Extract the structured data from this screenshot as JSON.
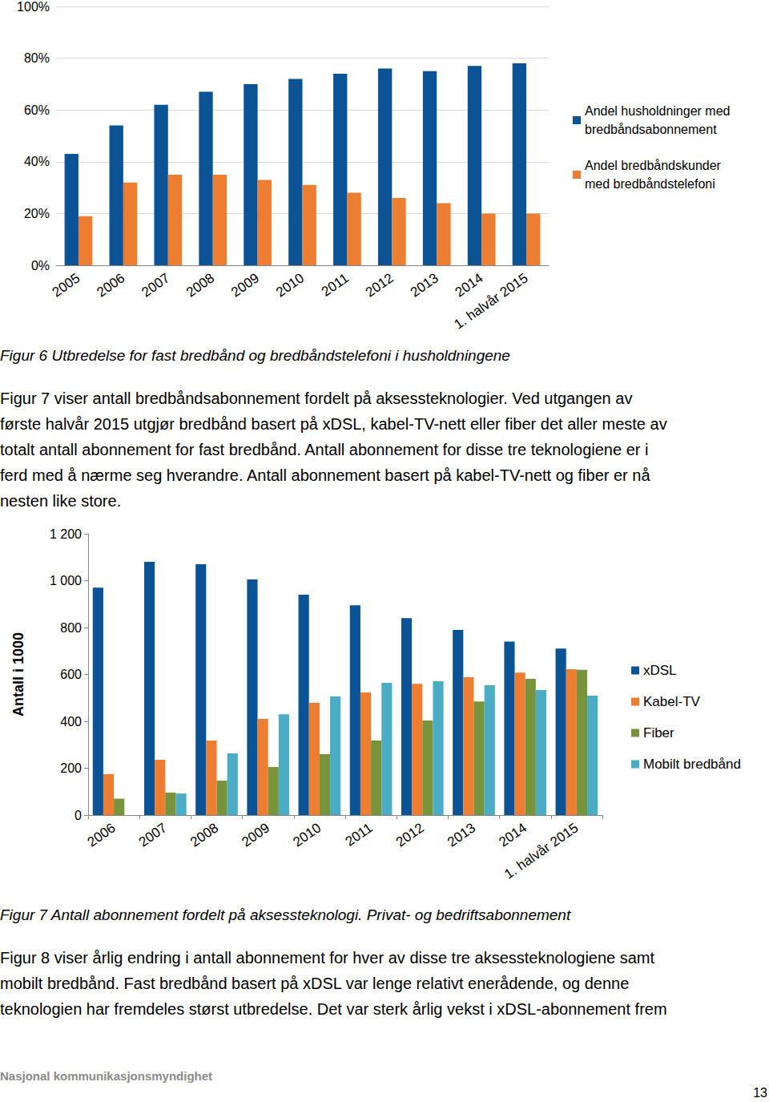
{
  "chart_data": [
    {
      "type": "bar",
      "categories": [
        "2005",
        "2006",
        "2007",
        "2008",
        "2009",
        "2010",
        "2011",
        "2012",
        "2013",
        "2014",
        "1. halvår 2015"
      ],
      "series": [
        {
          "name": "Andel husholdninger med bredbåndsabonnement",
          "color": "#0b5394",
          "values": [
            43,
            54,
            62,
            67,
            70,
            72,
            74,
            76,
            75,
            77,
            78
          ]
        },
        {
          "name": "Andel bredbåndskunder med bredbåndstelefoni",
          "color": "#ed7d31",
          "values": [
            19,
            32,
            35,
            35,
            33,
            31,
            28,
            26,
            24,
            20,
            20
          ]
        }
      ],
      "ylim": [
        0,
        100
      ],
      "yticks": [
        {
          "value": 0,
          "label": "0%"
        },
        {
          "value": 20,
          "label": "20%"
        },
        {
          "value": 40,
          "label": "40%"
        },
        {
          "value": 60,
          "label": "60%"
        },
        {
          "value": 80,
          "label": "80%"
        },
        {
          "value": 100,
          "label": "100%"
        }
      ],
      "grid": true,
      "legend": "right"
    },
    {
      "type": "bar",
      "y_label": "Antall i 1000",
      "categories": [
        "2006",
        "2007",
        "2008",
        "2009",
        "2010",
        "2011",
        "2012",
        "2013",
        "2014",
        "1. halvår 2015"
      ],
      "series": [
        {
          "name": "xDSL",
          "color": "#0b5394",
          "values": [
            970,
            1080,
            1070,
            1005,
            940,
            895,
            840,
            790,
            740,
            710
          ]
        },
        {
          "name": "Kabel-TV",
          "color": "#ed7d31",
          "values": [
            175,
            236,
            318,
            410,
            479,
            523,
            560,
            588,
            608,
            622
          ]
        },
        {
          "name": "Fiber",
          "color": "#77933c",
          "values": [
            70,
            96,
            147,
            205,
            260,
            318,
            403,
            485,
            581,
            620
          ]
        },
        {
          "name": "Mobilt bredbånd",
          "color": "#4bacc6",
          "values": [
            null,
            92,
            263,
            430,
            506,
            564,
            571,
            554,
            533,
            509
          ]
        }
      ],
      "ylim": [
        0,
        1200
      ],
      "yticks": [
        0,
        200,
        400,
        600,
        800,
        {
          "value": 1000,
          "label": "1 000"
        },
        {
          "value": 1200,
          "label": "1 200"
        }
      ],
      "grid": false,
      "legend": "right"
    }
  ],
  "document": {
    "caption_1": "Figur 6 Utbredelse for fast bredbånd og bredbåndstelefoni i husholdningene",
    "paragraph_1": [
      "Figur 7 viser antall bredbåndsabonnement fordelt på aksessteknologier. Ved utgangen av",
      "første halvår 2015 utgjør bredbånd basert på xDSL, kabel-TV-nett eller fiber det aller meste av",
      "totalt antall abonnement for fast bredbånd. Antall abonnement for disse tre teknologiene er i",
      "ferd med å nærme seg hverandre. Antall abonnement basert på kabel-TV-nett og fiber er nå",
      "nesten like store."
    ],
    "caption_2": "Figur 7 Antall abonnement fordelt på aksessteknologi. Privat- og bedriftsabonnement",
    "paragraph_2": [
      "Figur 8 viser årlig endring i antall abonnement for hver av disse tre aksessteknologiene samt",
      "mobilt bredbånd. Fast bredbånd basert på xDSL var lenge relativt enerådende, og denne",
      "teknologien har fremdeles størst utbredelse. Det var sterk årlig vekst i xDSL-abonnement frem"
    ],
    "footer": "Nasjonal kommunikasjonsmyndighet",
    "page_number": 13
  }
}
